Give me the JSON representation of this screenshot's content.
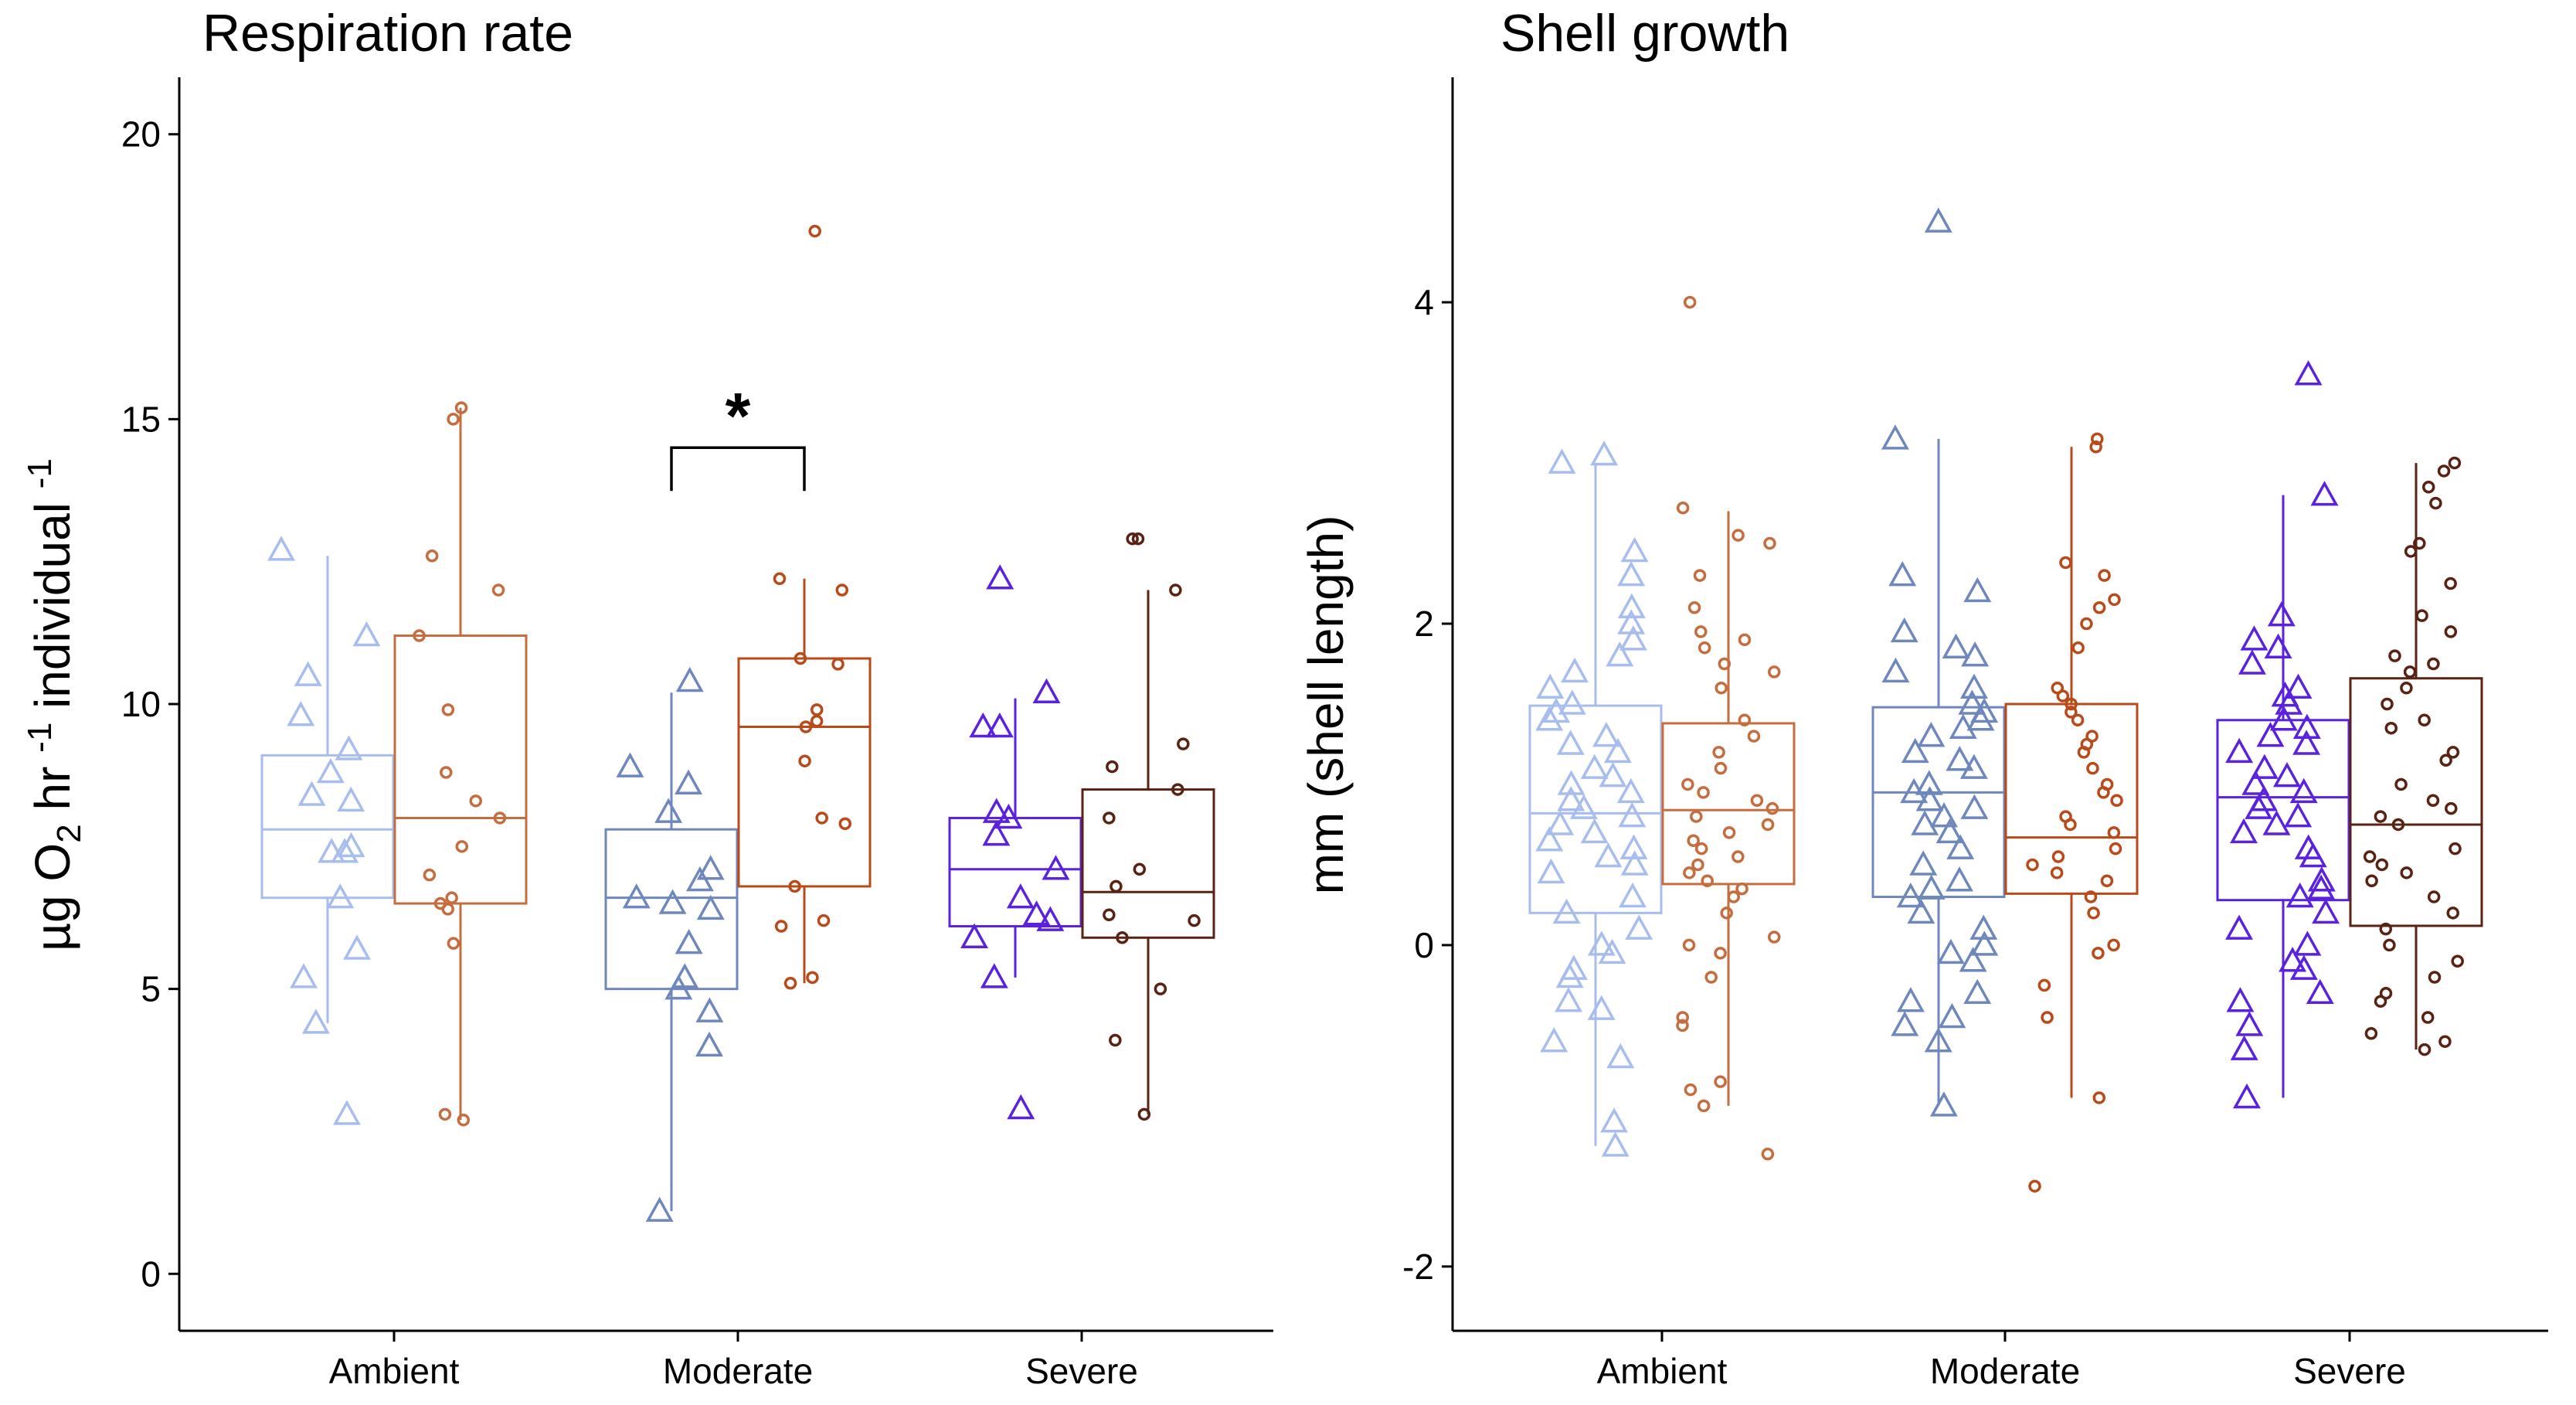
{
  "chart_data": [
    {
      "type": "box",
      "title": "Respiration rate",
      "ylabel": {
        "base": "µg O",
        "sub": "2",
        "mid1": " hr ",
        "sup1": "-1",
        "mid2": " individual ",
        "sup2": "-1"
      },
      "ylim": [
        -1,
        21
      ],
      "yticks": [
        0,
        5,
        10,
        15,
        20
      ],
      "categories": [
        "Ambient",
        "Moderate",
        "Severe"
      ],
      "grid": false,
      "series": [
        {
          "marker": "triangle",
          "colors": [
            "#a7bdee",
            "#6e88bd",
            "#5a22dd"
          ],
          "boxes": [
            {
              "min": 4.4,
              "q1": 6.6,
              "median": 7.8,
              "q3": 9.1,
              "max": 12.6
            },
            {
              "min": 1.1,
              "q1": 5.0,
              "median": 6.6,
              "q3": 7.8,
              "max": 10.2
            },
            {
              "min": 5.2,
              "q1": 6.1,
              "median": 7.1,
              "q3": 8.0,
              "max": 10.1
            }
          ],
          "points": [
            [
              12.7,
              11.2,
              10.5,
              9.8,
              9.2,
              8.8,
              8.4,
              8.3,
              7.5,
              7.4,
              7.4,
              6.6,
              5.7,
              5.2,
              4.4,
              2.8
            ],
            [
              10.4,
              8.9,
              8.6,
              8.1,
              7.1,
              6.9,
              6.6,
              6.5,
              6.4,
              5.8,
              5.2,
              5.0,
              4.6,
              4.0,
              1.1
            ],
            [
              12.2,
              10.2,
              9.6,
              9.6,
              8.1,
              8.0,
              7.7,
              7.1,
              6.6,
              6.3,
              6.2,
              5.9,
              5.2,
              2.9
            ]
          ]
        },
        {
          "marker": "circle",
          "colors": [
            "#c66d3f",
            "#b94a19",
            "#5a2213"
          ],
          "boxes": [
            {
              "min": 2.7,
              "q1": 6.5,
              "median": 8.0,
              "q3": 11.2,
              "max": 15.2
            },
            {
              "min": 5.1,
              "q1": 6.8,
              "median": 9.6,
              "q3": 10.8,
              "max": 12.2
            },
            {
              "min": 2.8,
              "q1": 5.9,
              "median": 6.7,
              "q3": 8.5,
              "max": 12.0
            }
          ],
          "points": [
            [
              15.2,
              15.0,
              12.6,
              12.0,
              11.2,
              9.9,
              8.8,
              8.3,
              8.0,
              7.5,
              7.0,
              6.6,
              6.5,
              6.4,
              5.8,
              2.8,
              2.7
            ],
            [
              18.3,
              12.2,
              12.0,
              10.8,
              10.7,
              9.9,
              9.7,
              9.6,
              9.0,
              8.0,
              7.9,
              6.8,
              6.2,
              6.1,
              5.2,
              5.1
            ],
            [
              12.9,
              12.9,
              12.0,
              9.3,
              8.9,
              8.5,
              8.0,
              7.1,
              6.8,
              6.3,
              6.2,
              5.9,
              5.0,
              4.1,
              2.8
            ]
          ]
        }
      ],
      "annotations": [
        {
          "text": "*",
          "bracket": {
            "group": "Moderate",
            "from_series": 0,
            "to_series": 1,
            "y": 14.5
          }
        }
      ]
    },
    {
      "type": "box",
      "title": "Shell growth",
      "ylabel": {
        "base": "mm (shell length)"
      },
      "ylim": [
        -2.4,
        5.4
      ],
      "yticks": [
        -2,
        0,
        2,
        4
      ],
      "categories": [
        "Ambient",
        "Moderate",
        "Severe"
      ],
      "grid": false,
      "series": [
        {
          "marker": "triangle",
          "colors": [
            "#a7bdee",
            "#6e88bd",
            "#5a22dd"
          ],
          "boxes": [
            {
              "min": -1.25,
              "q1": 0.2,
              "median": 0.82,
              "q3": 1.49,
              "max": 3.0
            },
            {
              "min": -1.0,
              "q1": 0.3,
              "median": 0.95,
              "q3": 1.48,
              "max": 3.15
            },
            {
              "min": -0.95,
              "q1": 0.28,
              "median": 0.92,
              "q3": 1.4,
              "max": 2.8
            }
          ],
          "points": [
            [
              3.05,
              3.0,
              2.45,
              2.3,
              2.1,
              2.0,
              1.9,
              1.8,
              1.7,
              1.6,
              1.5,
              1.45,
              1.4,
              1.3,
              1.25,
              1.2,
              1.1,
              1.05,
              1.0,
              0.95,
              0.9,
              0.85,
              0.8,
              0.75,
              0.7,
              0.65,
              0.6,
              0.55,
              0.5,
              0.45,
              0.3,
              0.2,
              0.1,
              0.0,
              -0.05,
              -0.15,
              -0.2,
              -0.35,
              -0.4,
              -0.6,
              -0.7,
              -1.1,
              -1.25
            ],
            [
              4.5,
              3.15,
              2.3,
              2.2,
              1.95,
              1.85,
              1.8,
              1.7,
              1.6,
              1.5,
              1.45,
              1.4,
              1.35,
              1.3,
              1.2,
              1.15,
              1.1,
              1.0,
              0.95,
              0.9,
              0.85,
              0.8,
              0.75,
              0.7,
              0.6,
              0.5,
              0.4,
              0.35,
              0.3,
              0.2,
              0.1,
              0.0,
              -0.05,
              -0.1,
              -0.3,
              -0.35,
              -0.45,
              -0.5,
              -0.6,
              -1.0
            ],
            [
              3.55,
              2.8,
              2.05,
              1.9,
              1.85,
              1.75,
              1.6,
              1.55,
              1.5,
              1.4,
              1.35,
              1.3,
              1.25,
              1.2,
              1.1,
              1.05,
              1.0,
              0.95,
              0.9,
              0.85,
              0.8,
              0.75,
              0.7,
              0.6,
              0.55,
              0.4,
              0.35,
              0.3,
              0.2,
              0.1,
              0.0,
              -0.1,
              -0.15,
              -0.3,
              -0.35,
              -0.5,
              -0.65,
              -0.95
            ]
          ]
        },
        {
          "marker": "circle",
          "colors": [
            "#c66d3f",
            "#b94a19",
            "#5a2213"
          ],
          "boxes": [
            {
              "min": -1.0,
              "q1": 0.38,
              "median": 0.84,
              "q3": 1.38,
              "max": 2.7
            },
            {
              "min": -0.95,
              "q1": 0.32,
              "median": 0.67,
              "q3": 1.5,
              "max": 3.1
            },
            {
              "min": -0.65,
              "q1": 0.12,
              "median": 0.75,
              "q3": 1.66,
              "max": 3.0
            }
          ],
          "points": [
            [
              4.0,
              2.72,
              2.55,
              2.5,
              2.3,
              2.1,
              1.95,
              1.9,
              1.85,
              1.75,
              1.7,
              1.6,
              1.4,
              1.3,
              1.2,
              1.1,
              1.0,
              0.95,
              0.9,
              0.85,
              0.8,
              0.75,
              0.7,
              0.65,
              0.6,
              0.55,
              0.5,
              0.45,
              0.4,
              0.35,
              0.3,
              0.2,
              0.05,
              0.0,
              -0.05,
              -0.2,
              -0.5,
              -0.45,
              -0.85,
              -0.9,
              -1.0,
              -1.3
            ],
            [
              3.15,
              3.1,
              2.38,
              2.3,
              2.15,
              2.1,
              2.0,
              1.85,
              1.6,
              1.55,
              1.5,
              1.45,
              1.4,
              1.3,
              1.25,
              1.2,
              1.1,
              1.0,
              0.95,
              0.9,
              0.8,
              0.75,
              0.7,
              0.6,
              0.55,
              0.5,
              0.45,
              0.4,
              0.3,
              0.2,
              0.0,
              -0.05,
              -0.25,
              -0.45,
              -0.95,
              -1.5
            ],
            [
              3.0,
              2.95,
              2.85,
              2.75,
              2.5,
              2.45,
              2.25,
              2.05,
              1.95,
              1.8,
              1.75,
              1.7,
              1.6,
              1.5,
              1.4,
              1.35,
              1.2,
              1.15,
              1.0,
              0.9,
              0.85,
              0.8,
              0.75,
              0.6,
              0.55,
              0.5,
              0.45,
              0.4,
              0.3,
              0.2,
              0.1,
              0.0,
              -0.1,
              -0.2,
              -0.3,
              -0.35,
              -0.45,
              -0.55,
              -0.6,
              -0.65
            ]
          ]
        }
      ]
    }
  ]
}
